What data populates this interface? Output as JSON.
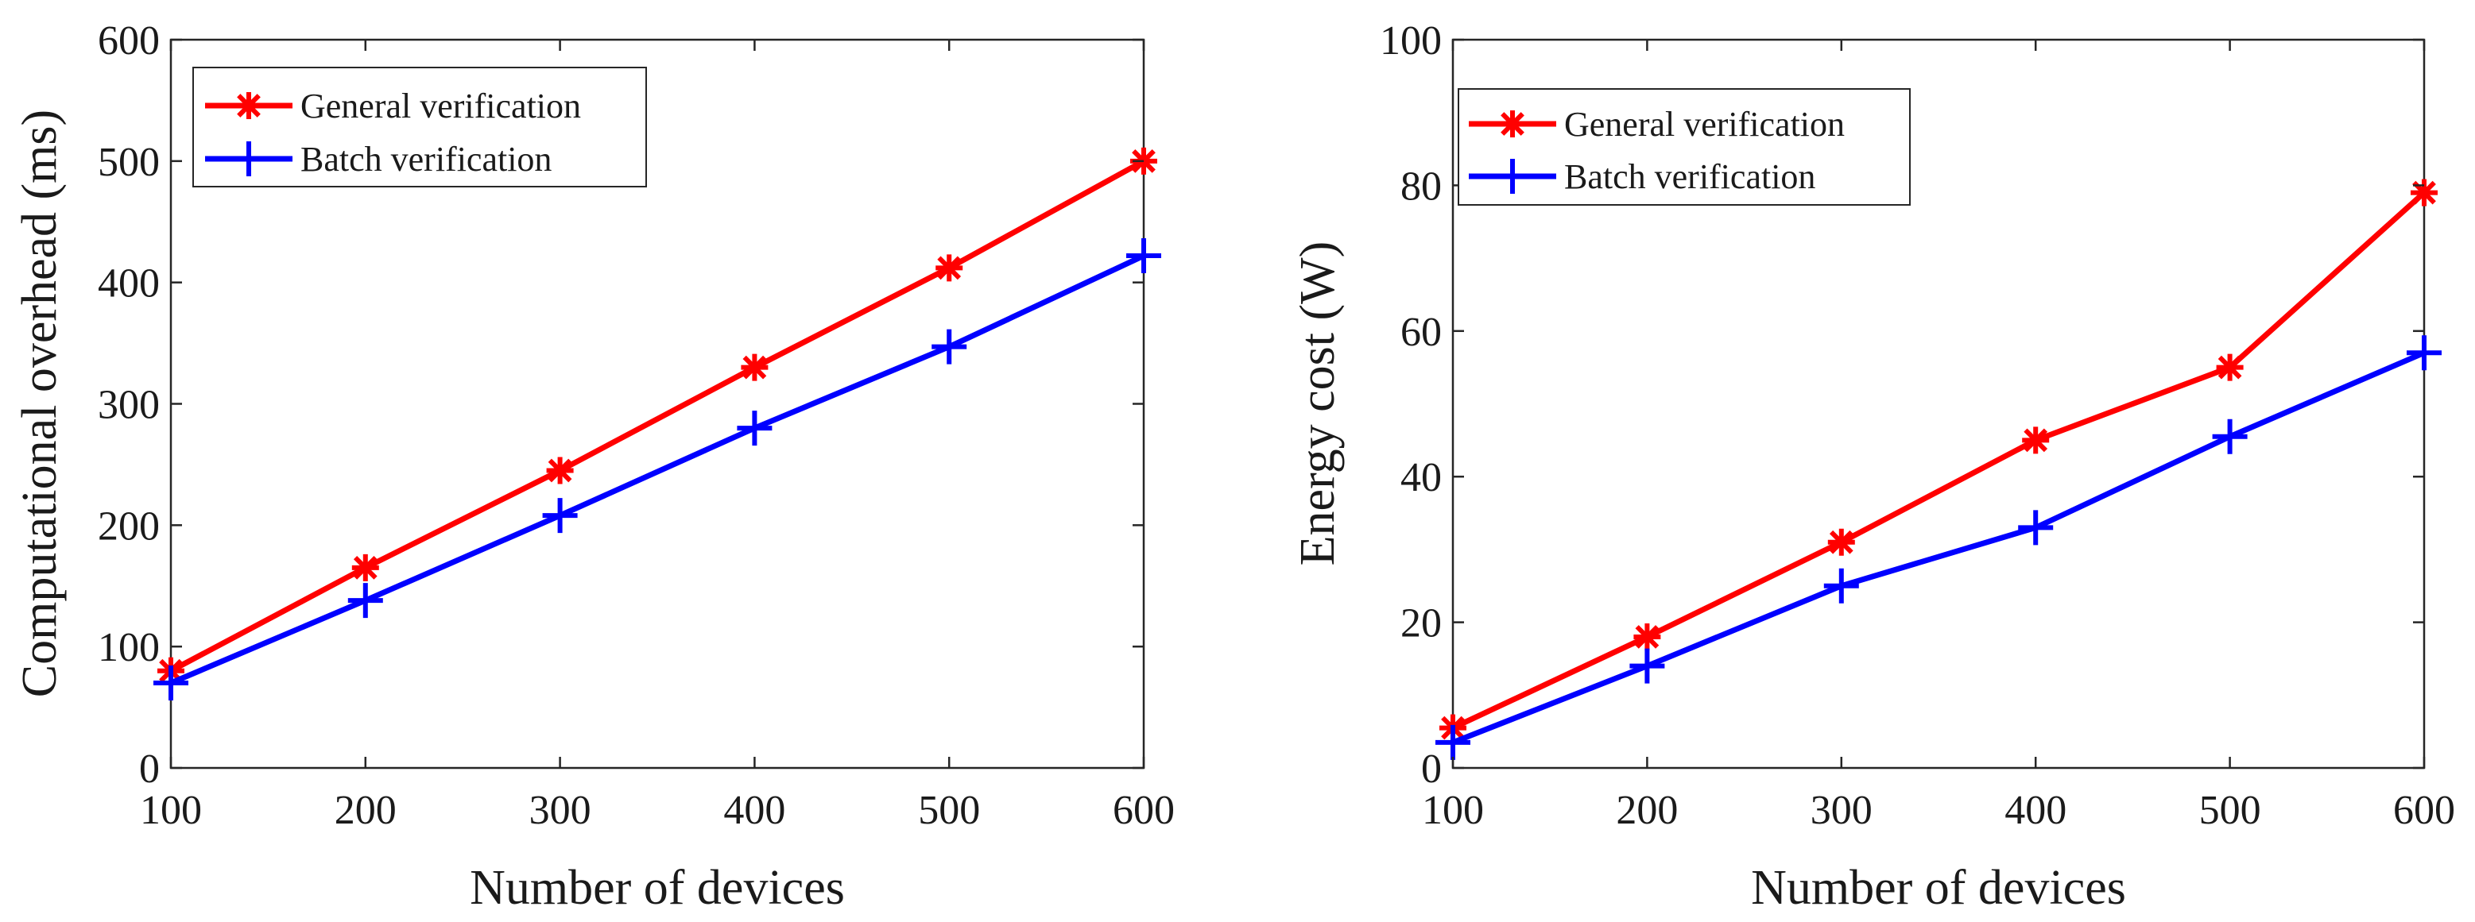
{
  "chart_data": [
    {
      "type": "line",
      "title": "",
      "xlabel": "Number of devices",
      "ylabel": "Computational overhead (ms)",
      "x": [
        100,
        200,
        300,
        400,
        500,
        600
      ],
      "xlim": [
        100,
        600
      ],
      "ylim": [
        0,
        600
      ],
      "xticks": [
        100,
        200,
        300,
        400,
        500,
        600
      ],
      "yticks": [
        0,
        100,
        200,
        300,
        400,
        500,
        600
      ],
      "grid": false,
      "legend_position": "top-left",
      "series": [
        {
          "name": "General verification",
          "color": "#ff0000",
          "marker": "asterisk",
          "values": [
            80,
            165,
            245,
            330,
            412,
            500
          ]
        },
        {
          "name": "Batch verification",
          "color": "#0000ff",
          "marker": "plus",
          "values": [
            70,
            138,
            208,
            280,
            347,
            422
          ]
        }
      ]
    },
    {
      "type": "line",
      "title": "",
      "xlabel": "Number of devices",
      "ylabel": "Energy cost (W)",
      "x": [
        100,
        200,
        300,
        400,
        500,
        600
      ],
      "xlim": [
        100,
        600
      ],
      "ylim": [
        0,
        100
      ],
      "xticks": [
        100,
        200,
        300,
        400,
        500,
        600
      ],
      "yticks": [
        0,
        20,
        40,
        60,
        80,
        100
      ],
      "grid": false,
      "legend_position": "top-left",
      "series": [
        {
          "name": "General verification",
          "color": "#ff0000",
          "marker": "asterisk",
          "values": [
            5.5,
            18,
            31,
            45,
            55,
            79
          ]
        },
        {
          "name": "Batch verification",
          "color": "#0000ff",
          "marker": "plus",
          "values": [
            3.5,
            14,
            25,
            33,
            45.5,
            57
          ]
        }
      ]
    }
  ]
}
